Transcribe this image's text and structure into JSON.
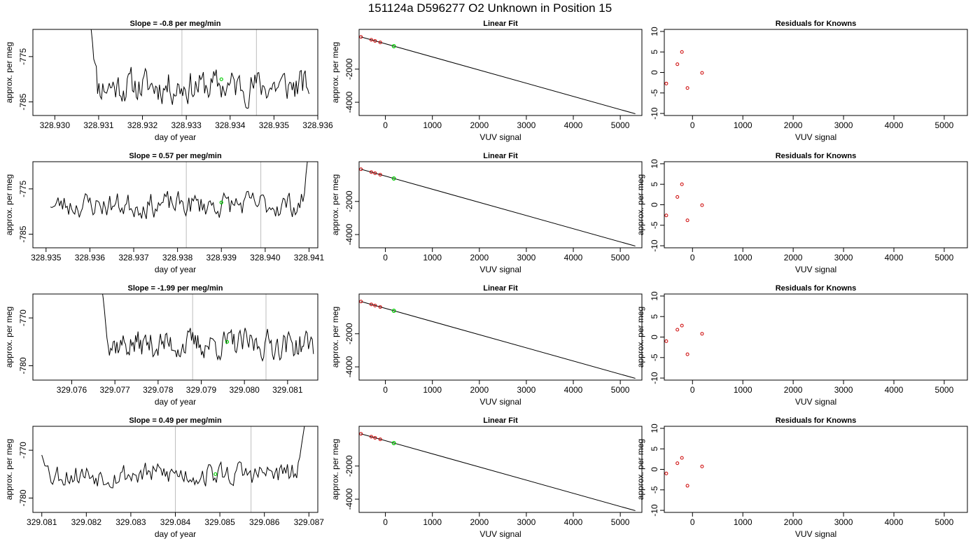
{
  "header": {
    "title": "151124a      D596277   O2 Unknown in Position  15"
  },
  "colors": {
    "trace": "#000000",
    "marker_unknown": "#00cc00",
    "marker_known": "#cc0000",
    "vline": "#bebebe"
  },
  "chart_data": [
    {
      "type": "line",
      "row": 1,
      "panel": "trace",
      "title": "Slope =  -0.8  per meg/min",
      "xlabel": "day of year",
      "ylabel": "approx. per meg",
      "xlim": [
        328.9295,
        328.936
      ],
      "ylim": [
        -788,
        -769
      ],
      "x_ticks": [
        "328.930",
        "328.931",
        "328.932",
        "328.933",
        "328.934",
        "328.935",
        "328.936"
      ],
      "y_ticks": [
        -775,
        -785
      ],
      "vlines": [
        328.9329,
        328.9346
      ],
      "marker": {
        "x": 328.9338,
        "y": -780
      },
      "series": [
        {
          "x_start": 328.9308,
          "x_end": 328.9358,
          "seed": 11,
          "start_y": -766,
          "level": -781.5,
          "amp": 3.2,
          "tail_end": null
        }
      ]
    },
    {
      "type": "line",
      "row": 1,
      "panel": "fit",
      "title": "Linear Fit",
      "xlabel": "VUV signal",
      "ylabel": "approx. per meg",
      "xlim": [
        -560,
        5460
      ],
      "ylim": [
        -4800,
        400
      ],
      "x_ticks": [
        0,
        1000,
        2000,
        3000,
        4000,
        5000
      ],
      "y_ticks": [
        -2000,
        -4000
      ],
      "line": {
        "x": [
          -520,
          5320
        ],
        "y": [
          -55,
          -4695
        ]
      },
      "knowns": {
        "x": [
          -520,
          -300,
          -220,
          -110
        ],
        "y": [
          -55,
          -230,
          -295,
          -385
        ]
      },
      "unknown": {
        "x": 180,
        "y": -615
      }
    },
    {
      "type": "scatter",
      "row": 1,
      "panel": "resid",
      "title": "Residuals for Knowns",
      "xlabel": "VUV signal",
      "ylabel": "",
      "xlim": [
        -560,
        5460
      ],
      "ylim": [
        -10.5,
        10.5
      ],
      "x_ticks": [
        0,
        1000,
        2000,
        3000,
        4000,
        5000
      ],
      "y_ticks": [
        10,
        5,
        0,
        -5,
        -10
      ],
      "points": {
        "x": [
          -520,
          -300,
          -210,
          -100,
          190
        ],
        "y": [
          -2.7,
          2,
          5,
          -3.8,
          -0.1
        ]
      }
    },
    {
      "type": "line",
      "row": 2,
      "panel": "trace",
      "title": "Slope =  0.57  per meg/min",
      "xlabel": "day of year",
      "ylabel": "approx. per meg",
      "xlim": [
        328.9347,
        328.9412
      ],
      "ylim": [
        -788,
        -769
      ],
      "x_ticks": [
        "328.935",
        "328.936",
        "328.937",
        "328.938",
        "328.939",
        "328.940",
        "328.941"
      ],
      "y_ticks": [
        -775,
        -785
      ],
      "vlines": [
        328.9382,
        328.9399
      ],
      "marker": {
        "x": 328.939,
        "y": -778
      },
      "series": [
        {
          "x_start": 328.9351,
          "x_end": 328.941,
          "seed": 23,
          "start_y": -779,
          "level": -778.5,
          "amp": 2.4,
          "tail_end": -765
        }
      ]
    },
    {
      "type": "line",
      "row": 2,
      "panel": "fit",
      "title": "Linear Fit",
      "xlabel": "VUV signal",
      "ylabel": "approx. per meg",
      "xlim": [
        -560,
        5460
      ],
      "ylim": [
        -4800,
        400
      ],
      "x_ticks": [
        0,
        1000,
        2000,
        3000,
        4000,
        5000
      ],
      "y_ticks": [
        -2000,
        -4000
      ],
      "line": {
        "x": [
          -520,
          5320
        ],
        "y": [
          -55,
          -4695
        ]
      },
      "knowns": {
        "x": [
          -520,
          -300,
          -220,
          -110
        ],
        "y": [
          -55,
          -230,
          -295,
          -385
        ]
      },
      "unknown": {
        "x": 180,
        "y": -615
      }
    },
    {
      "type": "scatter",
      "row": 2,
      "panel": "resid",
      "title": "Residuals for Knowns",
      "xlabel": "VUV signal",
      "ylabel": "approx. per meg",
      "xlim": [
        -560,
        5460
      ],
      "ylim": [
        -10.5,
        10.5
      ],
      "x_ticks": [
        0,
        1000,
        2000,
        3000,
        4000,
        5000
      ],
      "y_ticks": [
        10,
        5,
        0,
        -5,
        -10
      ],
      "points": {
        "x": [
          -520,
          -300,
          -210,
          -100,
          190
        ],
        "y": [
          -2.6,
          1.9,
          5,
          -3.8,
          -0.1
        ]
      }
    },
    {
      "type": "line",
      "row": 3,
      "panel": "trace",
      "title": "Slope =  -1.99  per meg/min",
      "xlabel": "day of year",
      "ylabel": "approx. per meg",
      "xlim": [
        329.0751,
        329.0817
      ],
      "ylim": [
        -783,
        -765
      ],
      "x_ticks": [
        "329.076",
        "329.077",
        "329.078",
        "329.079",
        "329.080",
        "329.081"
      ],
      "y_ticks": [
        -770,
        -780
      ],
      "vlines": [
        329.0788,
        329.0805
      ],
      "marker": {
        "x": 329.0796,
        "y": -775
      },
      "series": [
        {
          "x_start": 329.0767,
          "x_end": 329.0816,
          "seed": 37,
          "start_y": -764,
          "level": -775.5,
          "amp": 2.6,
          "tail_end": null
        }
      ]
    },
    {
      "type": "line",
      "row": 3,
      "panel": "fit",
      "title": "Linear Fit",
      "xlabel": "VUV signal",
      "ylabel": "approx. per meg",
      "xlim": [
        -560,
        5460
      ],
      "ylim": [
        -4800,
        400
      ],
      "x_ticks": [
        0,
        1000,
        2000,
        3000,
        4000,
        5000
      ],
      "y_ticks": [
        -2000,
        -4000
      ],
      "line": {
        "x": [
          -520,
          5320
        ],
        "y": [
          -55,
          -4695
        ]
      },
      "knowns": {
        "x": [
          -520,
          -300,
          -220,
          -110
        ],
        "y": [
          -55,
          -230,
          -295,
          -385
        ]
      },
      "unknown": {
        "x": 180,
        "y": -615
      }
    },
    {
      "type": "scatter",
      "row": 3,
      "panel": "resid",
      "title": "Residuals for Knowns",
      "xlabel": "VUV signal",
      "ylabel": "approx. per meg",
      "xlim": [
        -560,
        5460
      ],
      "ylim": [
        -10.5,
        10.5
      ],
      "x_ticks": [
        0,
        1000,
        2000,
        3000,
        4000,
        5000
      ],
      "y_ticks": [
        10,
        5,
        0,
        -5,
        -10
      ],
      "points": {
        "x": [
          -520,
          -300,
          -210,
          -100,
          190
        ],
        "y": [
          -1,
          1.8,
          2.8,
          -4.2,
          0.8
        ]
      }
    },
    {
      "type": "line",
      "row": 4,
      "panel": "trace",
      "title": "Slope =  0.49  per meg/min",
      "xlabel": "day of year",
      "ylabel": "approx. per meg",
      "xlim": [
        329.0808,
        329.0872
      ],
      "ylim": [
        -783,
        -765
      ],
      "x_ticks": [
        "329.081",
        "329.082",
        "329.083",
        "329.084",
        "329.085",
        "329.086",
        "329.087"
      ],
      "y_ticks": [
        -770,
        -780
      ],
      "vlines": [
        329.084,
        329.0857
      ],
      "marker": {
        "x": 329.0849,
        "y": -775
      },
      "series": [
        {
          "x_start": 329.081,
          "x_end": 329.0869,
          "seed": 53,
          "start_y": -771,
          "level": -775,
          "amp": 2.2,
          "tail_end": -765
        }
      ]
    },
    {
      "type": "line",
      "row": 4,
      "panel": "fit",
      "title": "Linear Fit",
      "xlabel": "VUV signal",
      "ylabel": "approx. per meg",
      "xlim": [
        -560,
        5460
      ],
      "ylim": [
        -4800,
        400
      ],
      "x_ticks": [
        0,
        1000,
        2000,
        3000,
        4000,
        5000
      ],
      "y_ticks": [
        -2000,
        -4000
      ],
      "line": {
        "x": [
          -520,
          5320
        ],
        "y": [
          -55,
          -4695
        ]
      },
      "knowns": {
        "x": [
          -520,
          -300,
          -220,
          -110
        ],
        "y": [
          -55,
          -230,
          -295,
          -385
        ]
      },
      "unknown": {
        "x": 180,
        "y": -615
      }
    },
    {
      "type": "scatter",
      "row": 4,
      "panel": "resid",
      "title": "Residuals for Knowns",
      "xlabel": "VUV signal",
      "ylabel": "approx. per meg",
      "xlim": [
        -560,
        5460
      ],
      "ylim": [
        -10.5,
        10.5
      ],
      "x_ticks": [
        0,
        1000,
        2000,
        3000,
        4000,
        5000
      ],
      "y_ticks": [
        10,
        5,
        0,
        -5,
        -10
      ],
      "points": {
        "x": [
          -520,
          -300,
          -210,
          -100,
          190
        ],
        "y": [
          -1,
          1.5,
          2.8,
          -4,
          0.7
        ]
      }
    }
  ]
}
